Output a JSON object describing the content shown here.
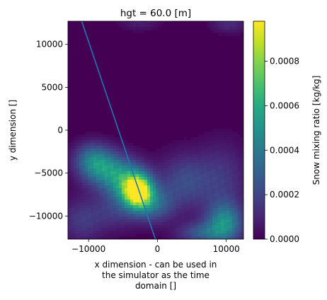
{
  "chart_data": {
    "type": "heatmap",
    "title": "hgt = 60.0 [m]",
    "xlabel_lines": [
      "x dimension - can be used in",
      "the simulator as the time",
      "domain []"
    ],
    "ylabel": "y dimension []",
    "colorbar_label": "Snow mixing ratio [kg/kg]",
    "colormap": "viridis",
    "xlim": [
      -13000,
      12500
    ],
    "ylim": [
      -12700,
      12700
    ],
    "vlim": [
      0,
      0.00098
    ],
    "x_ticks": [
      -10000,
      0,
      10000
    ],
    "x_tick_labels": [
      "−10000",
      "0",
      "10000"
    ],
    "y_ticks": [
      10000,
      5000,
      0,
      -5000,
      -10000
    ],
    "y_tick_labels": [
      "10000",
      "5000",
      "0",
      "−5000",
      "−10000"
    ],
    "colorbar_ticks": [
      0.0008,
      0.0006,
      0.0004,
      0.0002,
      0.0
    ],
    "colorbar_tick_labels": [
      "0.0008",
      "0.0006",
      "0.0004",
      "0.0002",
      "0.0000"
    ],
    "overlay_line": {
      "color": "#1f77b4",
      "points": [
        [
          -11000,
          12700
        ],
        [
          -300,
          -12700
        ]
      ]
    },
    "field_blobs": [
      {
        "x": -2800,
        "y": -7200,
        "sx": 1400,
        "sy": 1300,
        "v": 0.00088
      },
      {
        "x": -4200,
        "y": -6300,
        "sx": 2200,
        "sy": 1600,
        "v": 0.00046
      },
      {
        "x": -7500,
        "y": -4600,
        "sx": 2400,
        "sy": 1500,
        "v": 0.0004
      },
      {
        "x": -9500,
        "y": -3300,
        "sx": 1800,
        "sy": 1300,
        "v": 0.00028
      },
      {
        "x": -500,
        "y": -8700,
        "sx": 2000,
        "sy": 1400,
        "v": 0.0003
      },
      {
        "x": 4000,
        "y": -6000,
        "sx": 2600,
        "sy": 2200,
        "v": 0.00022
      },
      {
        "x": 9800,
        "y": -10800,
        "sx": 1800,
        "sy": 1600,
        "v": 0.00045
      },
      {
        "x": 6500,
        "y": -12000,
        "sx": 2400,
        "sy": 900,
        "v": 0.00026
      },
      {
        "x": 9500,
        "y": -5800,
        "sx": 2500,
        "sy": 3000,
        "v": 0.00015
      },
      {
        "x": -11000,
        "y": -10500,
        "sx": 2200,
        "sy": 1800,
        "v": 0.00016
      },
      {
        "x": -6000,
        "y": -9500,
        "sx": 2400,
        "sy": 1500,
        "v": 0.00014
      },
      {
        "x": 10500,
        "y": 12400,
        "sx": 1800,
        "sy": 700,
        "v": 0.00012
      },
      {
        "x": -2500,
        "y": 12500,
        "sx": 2000,
        "sy": 600,
        "v": 8e-05
      }
    ]
  }
}
